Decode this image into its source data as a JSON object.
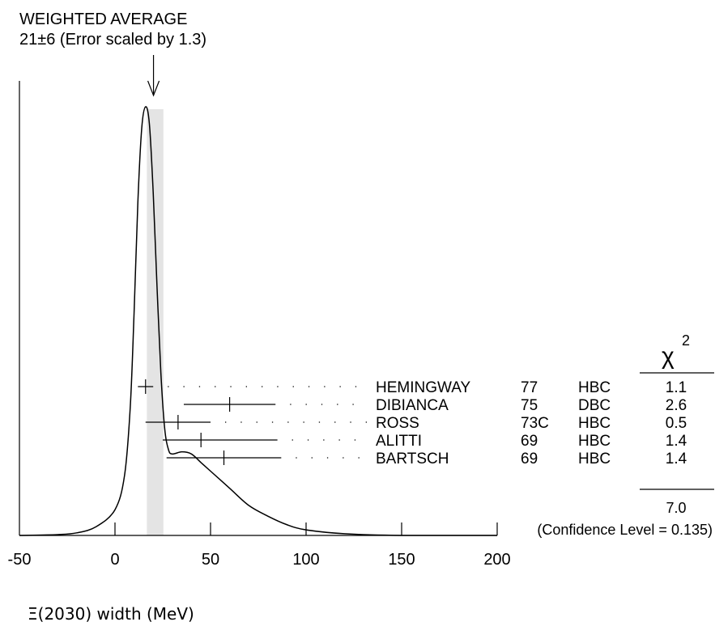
{
  "chart_data": {
    "type": "ideogram",
    "title_line1": "WEIGHTED AVERAGE",
    "title_line2": "21±6 (Error scaled by 1.3)",
    "xlabel": "Ξ(2030) width (MeV)",
    "xlim": [
      -50,
      200
    ],
    "x_ticks": [
      {
        "value": -50,
        "label": "-50"
      },
      {
        "value": 0,
        "label": "0"
      },
      {
        "value": 50,
        "label": "50"
      },
      {
        "value": 100,
        "label": "100"
      },
      {
        "value": 150,
        "label": "150"
      },
      {
        "value": 200,
        "label": "200"
      }
    ],
    "weighted_average": {
      "value": 21,
      "error": 6,
      "scale_factor": 1.3
    },
    "chi2_header": "χ",
    "chi2_sup": "2",
    "measurements": [
      {
        "author": "HEMINGWAY",
        "year": "77",
        "technique": "HBC",
        "chi2": "1.1",
        "value": 16,
        "err_low": 4,
        "err_high": 4
      },
      {
        "author": "DIBIANCA",
        "year": "75",
        "technique": "DBC",
        "chi2": "2.6",
        "value": 60,
        "err_low": 24,
        "err_high": 24
      },
      {
        "author": "ROSS",
        "year": "73C",
        "technique": "HBC",
        "chi2": "0.5",
        "value": 33,
        "err_low": 17,
        "err_high": 17
      },
      {
        "author": "ALITTI",
        "year": "69",
        "technique": "HBC",
        "chi2": "1.4",
        "value": 45,
        "err_low": 20,
        "err_high": 40
      },
      {
        "author": "BARTSCH",
        "year": "69",
        "technique": "HBC",
        "chi2": "1.4",
        "value": 57,
        "err_low": 30,
        "err_high": 30
      }
    ],
    "chi2_total": "7.0",
    "confidence_label": "(Confidence Level = 0.135)",
    "ideogram_curve": [
      [
        -50,
        0.0
      ],
      [
        -30,
        0.002
      ],
      [
        -20,
        0.006
      ],
      [
        -10,
        0.02
      ],
      [
        0,
        0.06
      ],
      [
        5,
        0.14
      ],
      [
        8,
        0.3
      ],
      [
        10,
        0.52
      ],
      [
        12,
        0.78
      ],
      [
        14,
        0.95
      ],
      [
        16,
        1.0
      ],
      [
        18,
        0.96
      ],
      [
        20,
        0.8
      ],
      [
        22,
        0.58
      ],
      [
        24,
        0.38
      ],
      [
        26,
        0.25
      ],
      [
        28,
        0.2
      ],
      [
        30,
        0.19
      ],
      [
        35,
        0.195
      ],
      [
        40,
        0.19
      ],
      [
        45,
        0.17
      ],
      [
        50,
        0.15
      ],
      [
        60,
        0.11
      ],
      [
        70,
        0.07
      ],
      [
        80,
        0.045
      ],
      [
        90,
        0.025
      ],
      [
        100,
        0.013
      ],
      [
        120,
        0.004
      ],
      [
        150,
        0.0
      ],
      [
        200,
        0.0
      ]
    ]
  }
}
